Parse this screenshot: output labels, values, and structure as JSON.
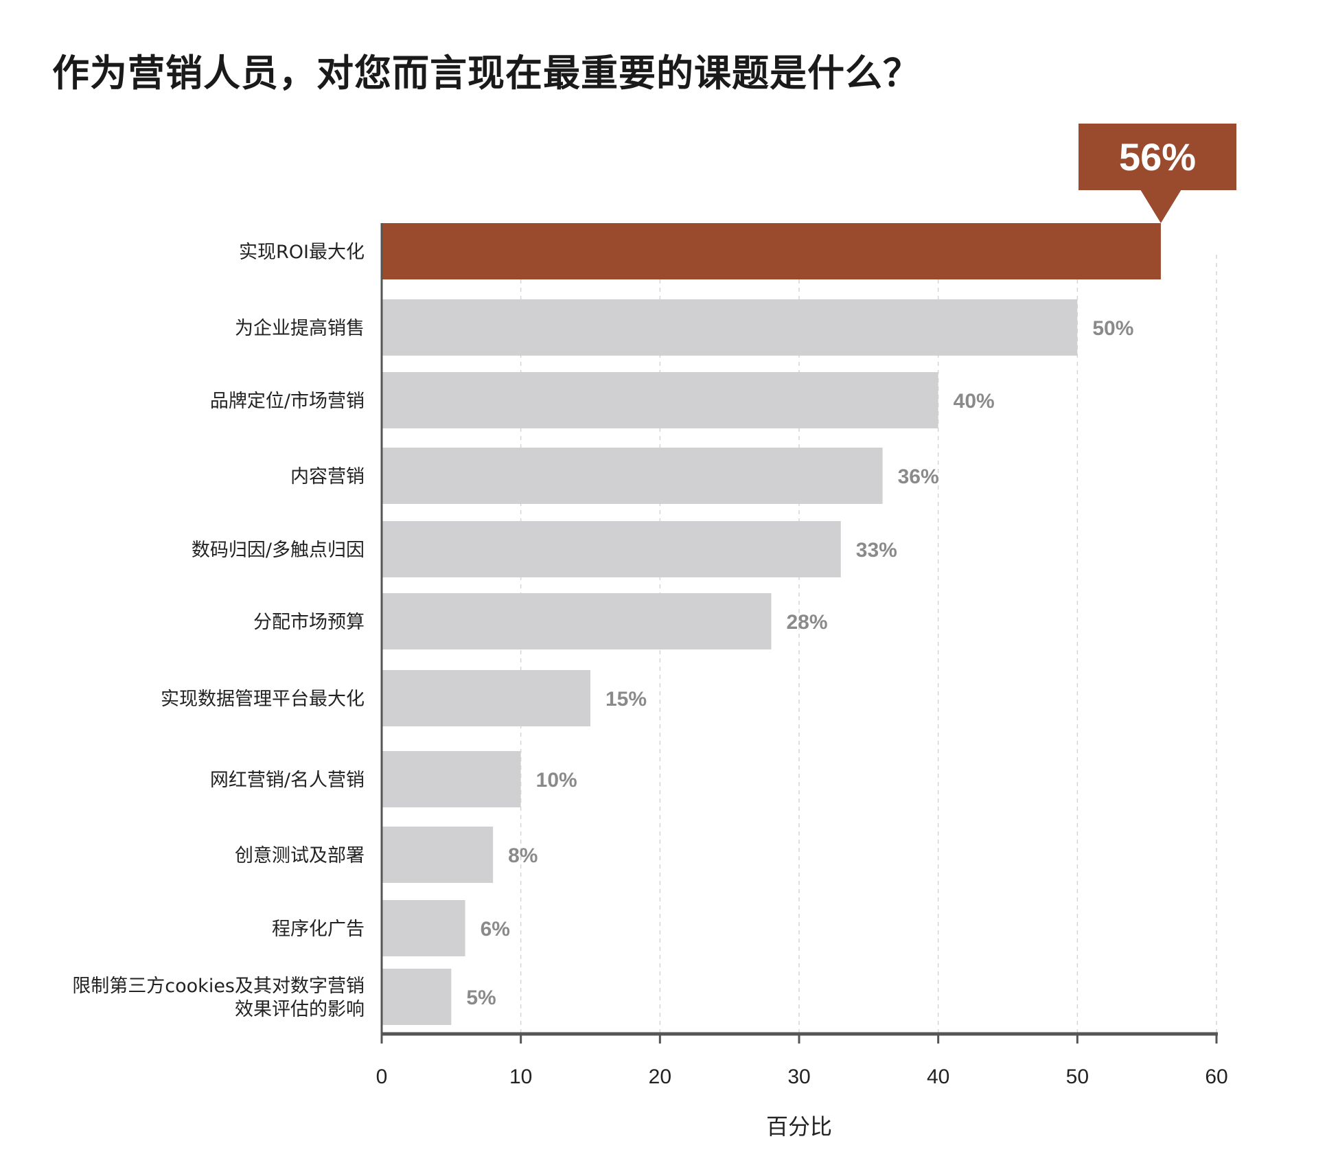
{
  "chart_data": {
    "type": "bar",
    "orientation": "horizontal",
    "title": "作为营销人员，对您而言现在最重要的课题是什么？",
    "categories": [
      "实现ROI最大化",
      "为企业提高销售",
      "品牌定位/市场营销",
      "内容营销",
      "数码归因/多触点归因",
      "分配市场预算",
      "实现数据管理平台最大化",
      "网红营销/名人营销",
      "创意测试及部署",
      "程序化广告",
      "限制第三方cookies及其对数字营销\n效果评估的影响"
    ],
    "values": [
      56,
      50,
      40,
      36,
      33,
      28,
      15,
      10,
      8,
      6,
      5
    ],
    "value_labels": [
      "56%",
      "50%",
      "40%",
      "36%",
      "33%",
      "28%",
      "15%",
      "10%",
      "8%",
      "6%",
      "5%"
    ],
    "highlight_index": 0,
    "xlabel": "百分比",
    "ylabel": "",
    "xlim": [
      0,
      60
    ],
    "xticks": [
      0,
      10,
      20,
      30,
      40,
      50,
      60
    ],
    "grid": "vertical dashed",
    "colors": {
      "highlight": "#9a4b2e",
      "bar": "#d0d0d2",
      "value_label": "#8a8a8a",
      "axis": "#555555"
    }
  }
}
